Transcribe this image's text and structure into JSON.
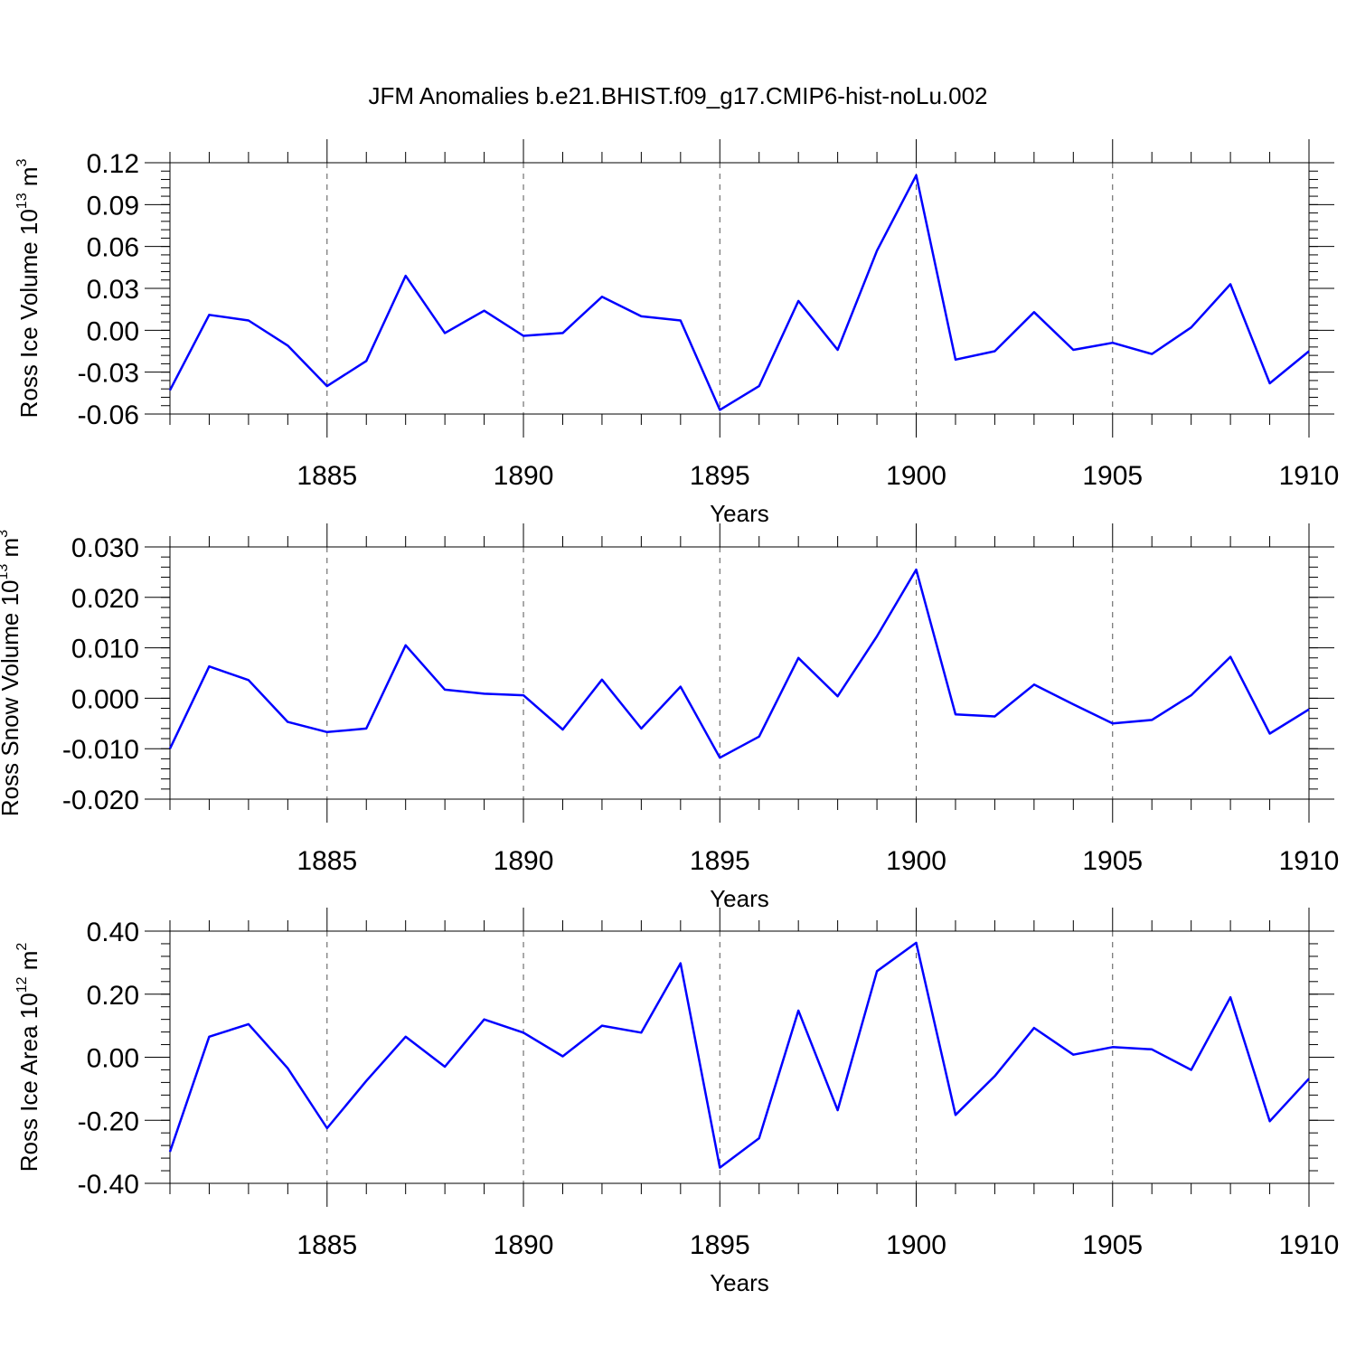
{
  "figure": {
    "title": "JFM Anomalies b.e21.BHIST.f09_g17.CMIP6-hist-noLu.002"
  },
  "colors": {
    "line": "#0000ff",
    "axis": "#000000",
    "grid": "#555555"
  },
  "chart_data": [
    {
      "type": "line",
      "title": "JFM Anomalies b.e21.BHIST.f09_g17.CMIP6-hist-noLu.002",
      "xlabel": "Years",
      "ylabel": "Ross Ice Volume 10",
      "ylabel_sup": "13",
      "ylabel_unit": " m",
      "ylabel_unit_sup": "3",
      "xlim": [
        1881,
        1910
      ],
      "ylim": [
        -0.06,
        0.12
      ],
      "yticks": [
        -0.06,
        -0.03,
        0.0,
        0.03,
        0.06,
        0.09,
        0.12
      ],
      "ytick_labels": [
        "-0.06",
        "-0.03",
        "0.00",
        "0.03",
        "0.06",
        "0.09",
        "0.12"
      ],
      "yminor_step": 0.006,
      "xticks": [
        1885,
        1890,
        1895,
        1900,
        1905,
        1910
      ],
      "xtick_labels": [
        "1885",
        "1890",
        "1895",
        "1900",
        "1905",
        "1910"
      ],
      "grid": "vertical dashed at labeled years",
      "x": [
        1881,
        1882,
        1883,
        1884,
        1885,
        1886,
        1887,
        1888,
        1889,
        1890,
        1891,
        1892,
        1893,
        1894,
        1895,
        1896,
        1897,
        1898,
        1899,
        1900,
        1901,
        1902,
        1903,
        1904,
        1905,
        1906,
        1907,
        1908,
        1909,
        1910
      ],
      "values": [
        -0.043,
        0.011,
        0.007,
        -0.011,
        -0.04,
        -0.022,
        0.039,
        -0.002,
        0.014,
        -0.004,
        -0.002,
        0.024,
        0.01,
        0.007,
        -0.057,
        -0.04,
        0.021,
        -0.014,
        0.057,
        0.111,
        -0.021,
        -0.015,
        0.013,
        -0.014,
        -0.009,
        -0.017,
        0.002,
        0.033,
        -0.038,
        -0.015
      ]
    },
    {
      "type": "line",
      "xlabel": "Years",
      "ylabel": "Ross Snow Volume 10",
      "ylabel_sup": "13",
      "ylabel_unit": " m",
      "ylabel_unit_sup": "3",
      "xlim": [
        1881,
        1910
      ],
      "ylim": [
        -0.02,
        0.03
      ],
      "yticks": [
        -0.02,
        -0.01,
        0.0,
        0.01,
        0.02,
        0.03
      ],
      "ytick_labels": [
        "-0.020",
        "-0.010",
        "0.000",
        "0.010",
        "0.020",
        "0.030"
      ],
      "yminor_step": 0.002,
      "xticks": [
        1885,
        1890,
        1895,
        1900,
        1905,
        1910
      ],
      "xtick_labels": [
        "1885",
        "1890",
        "1895",
        "1900",
        "1905",
        "1910"
      ],
      "grid": "vertical dashed at labeled years",
      "x": [
        1881,
        1882,
        1883,
        1884,
        1885,
        1886,
        1887,
        1888,
        1889,
        1890,
        1891,
        1892,
        1893,
        1894,
        1895,
        1896,
        1897,
        1898,
        1899,
        1900,
        1901,
        1902,
        1903,
        1904,
        1905,
        1906,
        1907,
        1908,
        1909,
        1910
      ],
      "values": [
        -0.01,
        0.0063,
        0.0036,
        -0.0047,
        -0.0067,
        -0.006,
        0.0105,
        0.0017,
        0.0009,
        0.0006,
        -0.0062,
        0.0037,
        -0.006,
        0.0023,
        -0.0118,
        -0.0076,
        0.008,
        0.0004,
        0.0123,
        0.0255,
        -0.0032,
        -0.0036,
        0.0027,
        -0.0012,
        -0.005,
        -0.0043,
        0.0006,
        0.0082,
        -0.007,
        -0.0022
      ]
    },
    {
      "type": "line",
      "xlabel": "Years",
      "ylabel": "Ross Ice Area 10",
      "ylabel_sup": "12",
      "ylabel_unit": " m",
      "ylabel_unit_sup": "2",
      "xlim": [
        1881,
        1910
      ],
      "ylim": [
        -0.4,
        0.4
      ],
      "yticks": [
        -0.4,
        -0.2,
        0.0,
        0.2,
        0.4
      ],
      "ytick_labels": [
        "-0.40",
        "-0.20",
        "0.00",
        "0.20",
        "0.40"
      ],
      "yminor_step": 0.04,
      "xticks": [
        1885,
        1890,
        1895,
        1900,
        1905,
        1910
      ],
      "xtick_labels": [
        "1885",
        "1890",
        "1895",
        "1900",
        "1905",
        "1910"
      ],
      "grid": "vertical dashed at labeled years",
      "x": [
        1881,
        1882,
        1883,
        1884,
        1885,
        1886,
        1887,
        1888,
        1889,
        1890,
        1891,
        1892,
        1893,
        1894,
        1895,
        1896,
        1897,
        1898,
        1899,
        1900,
        1901,
        1902,
        1903,
        1904,
        1905,
        1906,
        1907,
        1908,
        1909,
        1910
      ],
      "values": [
        -0.3,
        0.065,
        0.105,
        -0.035,
        -0.225,
        -0.075,
        0.065,
        -0.03,
        0.12,
        0.078,
        0.003,
        0.1,
        0.078,
        0.298,
        -0.35,
        -0.257,
        0.148,
        -0.168,
        0.273,
        0.363,
        -0.183,
        -0.06,
        0.093,
        0.008,
        0.032,
        0.025,
        -0.04,
        0.19,
        -0.203,
        -0.068
      ]
    }
  ]
}
